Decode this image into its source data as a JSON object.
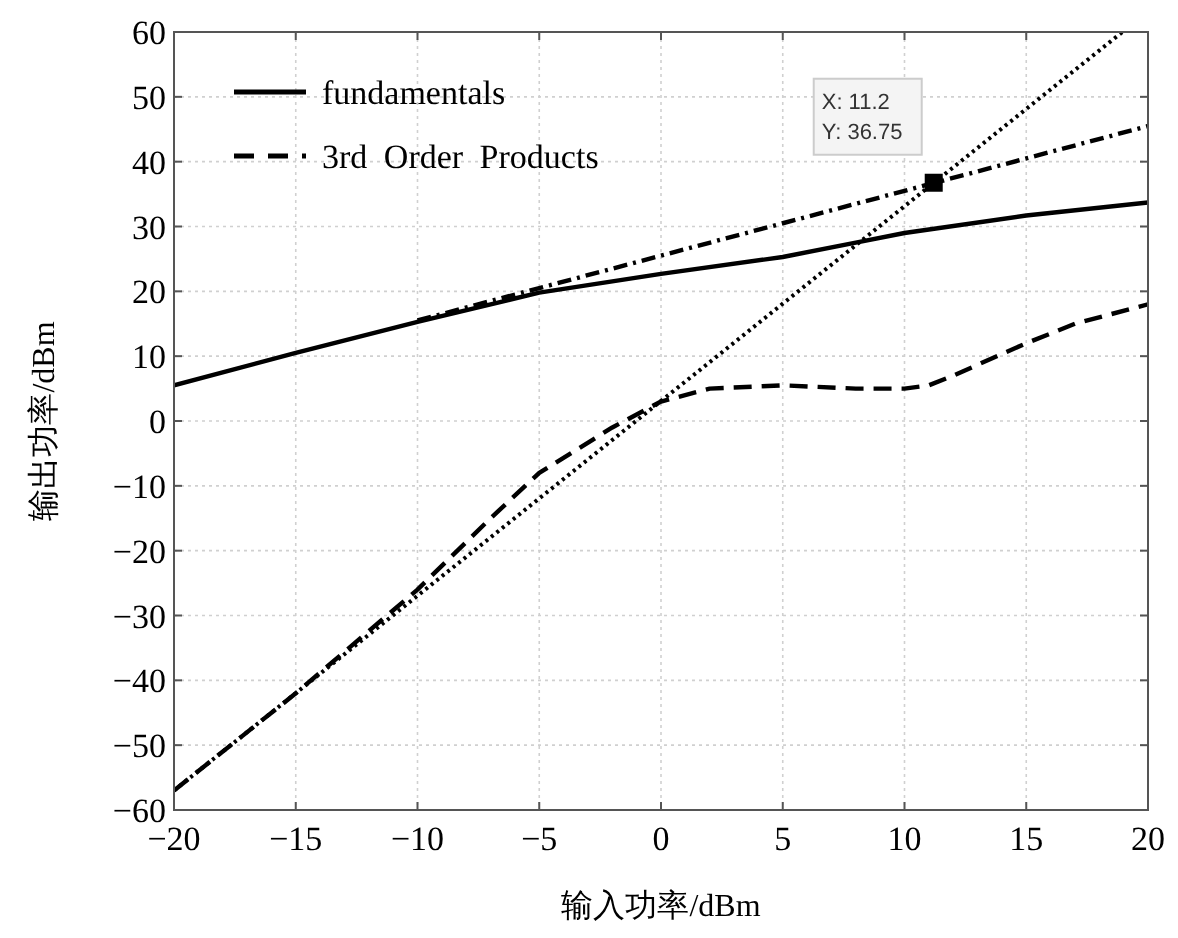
{
  "chart_data": {
    "type": "line",
    "xlabel": "输入功率/dBm",
    "ylabel": "输出功率/dBm",
    "xlim": [
      -20,
      20
    ],
    "ylim": [
      -60,
      60
    ],
    "xticks": [
      -20,
      -15,
      -10,
      -5,
      0,
      5,
      10,
      15,
      20
    ],
    "yticks": [
      -60,
      -50,
      -40,
      -30,
      -20,
      -10,
      0,
      10,
      20,
      30,
      40,
      50,
      60
    ],
    "grid": true,
    "legend": "top left",
    "marker": "none",
    "series": [
      {
        "name": "fundamentals",
        "color": "#000000",
        "line_style": "solid",
        "x": [
          -20,
          -15,
          -10,
          -5,
          0,
          5,
          8,
          10,
          15,
          20
        ],
        "values": [
          5.5,
          10.5,
          15.3,
          19.8,
          22.7,
          25.3,
          27.5,
          29,
          31.7,
          33.7
        ]
      },
      {
        "name": "3rd Order Products",
        "color": "#000000",
        "line_style": "dashed",
        "x": [
          -20,
          -15,
          -10,
          -7,
          -5,
          -2,
          0,
          2,
          5,
          8,
          10,
          11,
          12,
          15,
          17,
          20
        ],
        "values": [
          -57,
          -42,
          -26,
          -15,
          -8,
          -1,
          3,
          5,
          5.5,
          5,
          5,
          5.5,
          7,
          12,
          15,
          18
        ]
      },
      {
        "color": "#000000",
        "line_style": "dotted",
        "x": [
          -20,
          18.95
        ],
        "values": [
          -57,
          60
        ]
      },
      {
        "color": "#000000",
        "line_style": "dashdot",
        "x": [
          -10,
          20
        ],
        "values": [
          15.5,
          45.5
        ]
      }
    ],
    "annotations": [
      {
        "text": "X: 11.2\nY: 36.75",
        "x": 11.2,
        "y": 36.75
      }
    ]
  }
}
